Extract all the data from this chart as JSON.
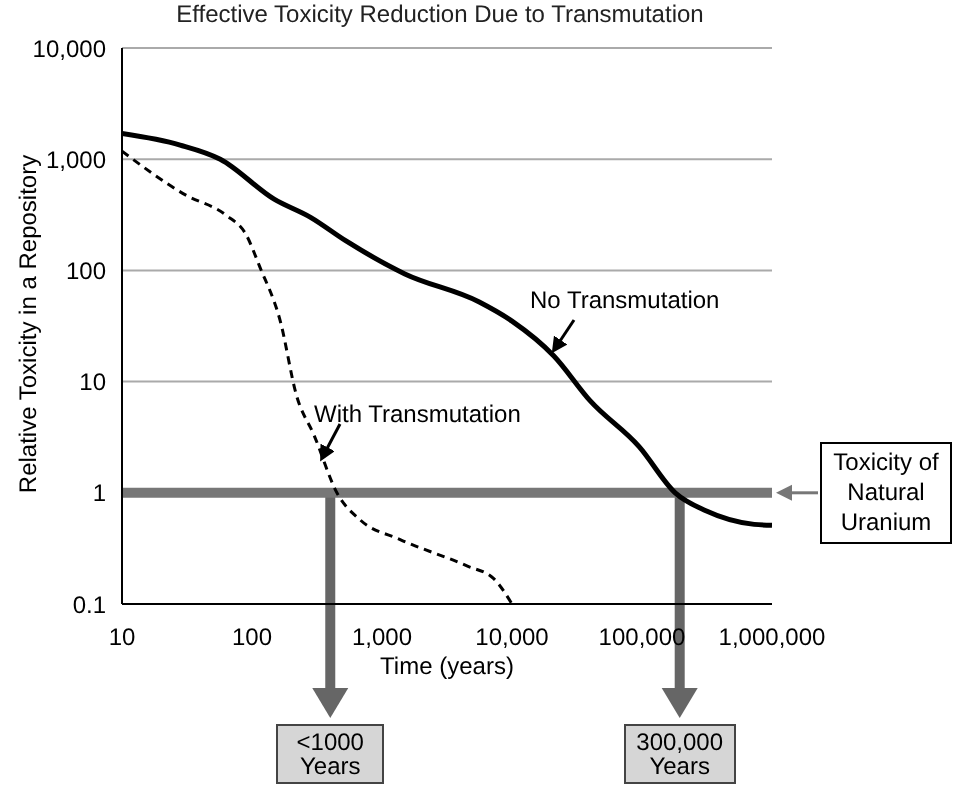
{
  "chart_data": {
    "type": "line",
    "title": "Effective Toxicity Reduction Due to Transmutation",
    "xlabel": "Time (years)",
    "ylabel": "Relative Toxicity in a Repository",
    "log": "xy",
    "grid": "y",
    "marker": "none",
    "xlim": [
      10,
      1000000
    ],
    "ylim": [
      0.1,
      10000
    ],
    "xticks": [
      10,
      100,
      {
        "value": 1000,
        "label": "1,000"
      },
      {
        "value": 10000,
        "label": "10,000"
      },
      {
        "value": 100000,
        "label": "100,000"
      },
      {
        "value": 1000000,
        "label": "1,000,000"
      }
    ],
    "yticks": [
      0.1,
      1,
      10,
      100,
      {
        "value": 1000,
        "label": "1,000"
      },
      {
        "value": 10000,
        "label": "10,000"
      }
    ],
    "series": [
      {
        "name": "No Transmutation",
        "color": "#000000",
        "line_style": "solid",
        "x": [
          10,
          28,
          57,
          148,
          282,
          525,
          1500,
          5600,
          10000,
          21000,
          40000,
          95000,
          180000,
          310000,
          730000,
          1000000
        ],
        "values": [
          1700,
          1340,
          1000,
          437,
          300,
          185,
          93,
          52,
          35,
          17,
          6.7,
          2.6,
          1.0,
          0.69,
          0.52,
          0.51
        ]
      },
      {
        "name": "With Transmutation",
        "color": "#000000",
        "line_style": "dashed",
        "x": [
          10,
          31,
          63,
          90,
          115,
          165,
          220,
          300,
          450,
          680,
          1380,
          4500,
          7200,
          10000
        ],
        "values": [
          1180,
          475,
          314,
          210,
          107,
          35,
          7.5,
          3.3,
          1.0,
          0.57,
          0.38,
          0.22,
          0.17,
          0.1
        ]
      }
    ],
    "ref_lines": [
      {
        "axis": "y",
        "value": 1,
        "label": "Toxicity of Natural Uranium",
        "color": "#777777"
      },
      {
        "axis": "x",
        "value": 400,
        "label": "<1000 Years",
        "color": "#666666"
      },
      {
        "axis": "x",
        "value": 195000,
        "label": "300,000 Years",
        "color": "#666666"
      }
    ]
  }
}
